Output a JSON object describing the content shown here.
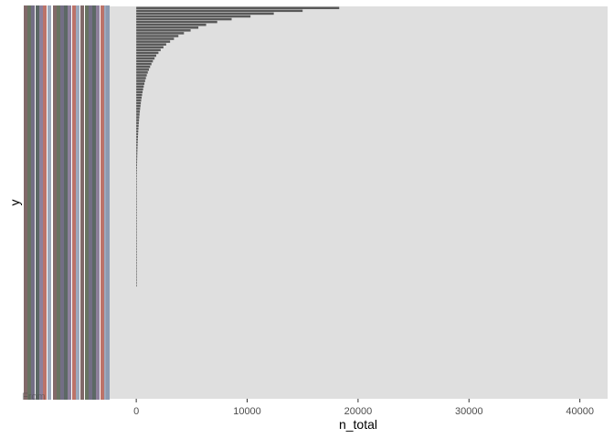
{
  "chart_data": {
    "type": "bar",
    "orientation": "horizontal",
    "title": "",
    "xlabel": "n_total",
    "ylabel": "y",
    "xlim": [
      -2400,
      42500
    ],
    "xticks": [
      0,
      10000,
      20000,
      30000,
      40000
    ],
    "xtick_labels": [
      "0",
      "10000",
      "20000",
      "30000",
      "40000"
    ],
    "ytick_labels_note": "overplotted category labels (illegible), partial text visible: From",
    "ytick_text_visible": "From",
    "grid": false,
    "panel_background": "#dfdfdf",
    "bar_color": "#595959",
    "values": [
      18300,
      15000,
      12400,
      10300,
      8600,
      7300,
      6300,
      5600,
      4900,
      4300,
      3800,
      3400,
      3050,
      2700,
      2450,
      2200,
      2000,
      1800,
      1650,
      1500,
      1370,
      1250,
      1140,
      1040,
      950,
      870,
      800,
      735,
      675,
      620,
      570,
      525,
      485,
      445,
      410,
      380,
      350,
      322,
      296,
      272,
      250,
      230,
      212,
      196,
      181,
      167,
      154,
      142,
      131,
      121,
      112,
      104,
      96,
      89,
      82,
      76,
      70,
      65,
      60,
      56,
      52,
      48,
      44,
      41,
      38,
      35,
      32,
      30,
      28,
      26,
      24,
      22,
      20,
      18,
      17,
      15,
      14,
      13,
      12,
      11,
      10,
      9,
      8,
      7,
      6,
      5,
      5,
      4,
      4,
      3,
      3,
      2,
      2,
      2,
      1,
      1,
      1,
      1,
      1,
      1
    ],
    "empty_category_rows": 40
  },
  "colors": {
    "panel": "#dfdfdf",
    "bar": "#595959",
    "label_stripe_colors": [
      "#6b4f4f",
      "#4d5a45",
      "#5a5570",
      "#3f4e4a",
      "#7a6a8a",
      "#b05a4f",
      "#8c9ab0"
    ]
  }
}
